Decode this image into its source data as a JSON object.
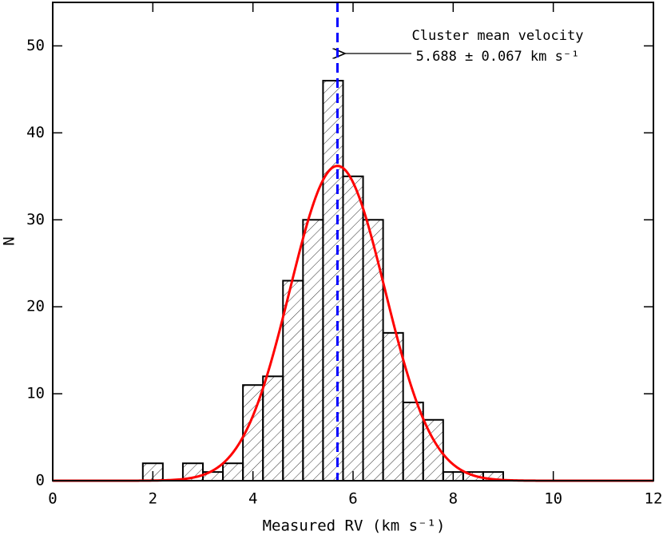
{
  "chart_data": {
    "type": "histogram",
    "bins": [
      1.8,
      2.2,
      2.6,
      3.0,
      3.4,
      3.8,
      4.2,
      4.6,
      5.0,
      5.4,
      5.8,
      6.2,
      6.6,
      7.0,
      7.4,
      7.8,
      8.2,
      8.6,
      9.0
    ],
    "values": [
      2,
      0,
      2,
      1,
      2,
      11,
      12,
      23,
      30,
      46,
      35,
      30,
      17,
      9,
      7,
      1,
      1,
      1
    ],
    "xlim": [
      0,
      12
    ],
    "ylim": [
      0,
      55
    ],
    "xticks": [
      0,
      2,
      4,
      6,
      8,
      10,
      12
    ],
    "yticks": [
      0,
      10,
      20,
      30,
      40,
      50
    ],
    "x_label": "Measured RV (km s⁻¹)",
    "y_label": "N",
    "fit": {
      "amplitude": 36.2,
      "mean": 5.688,
      "sigma": 0.95,
      "color": "#ff0000"
    },
    "mean_line": {
      "x": 5.688,
      "color": "#0000ff"
    },
    "annotation": [
      "Cluster mean velocity",
      "5.688 ± 0.067 km s⁻¹"
    ]
  }
}
